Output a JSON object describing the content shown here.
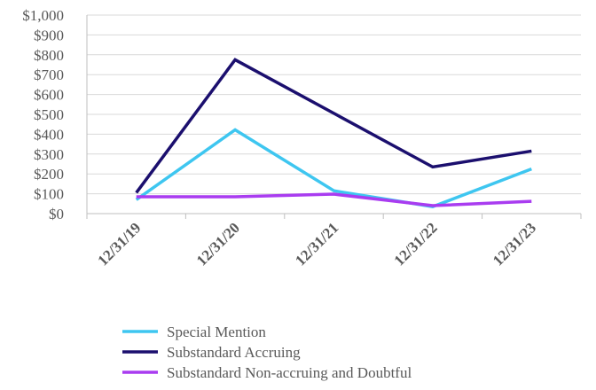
{
  "chart_data": {
    "type": "line",
    "categories": [
      "12/31/19",
      "12/31/20",
      "12/31/21",
      "12/31/22",
      "12/31/23"
    ],
    "series": [
      {
        "name": "Special Mention",
        "values": [
          70,
          422,
          115,
          35,
          225
        ],
        "color": "#3ec6f0"
      },
      {
        "name": "Substandard Accruing",
        "values": [
          105,
          775,
          505,
          235,
          315
        ],
        "color": "#1b0f6e"
      },
      {
        "name": "Substandard Non-accruing and Doubtful",
        "values": [
          85,
          85,
          98,
          40,
          62
        ],
        "color": "#a93cf0"
      }
    ],
    "y_ticks": [
      "$0",
      "$100",
      "$200",
      "$300",
      "$400",
      "$500",
      "$600",
      "$700",
      "$800",
      "$900",
      "$1,000"
    ],
    "ylim": [
      0,
      1000
    ],
    "grid": true,
    "legend_position": "bottom"
  }
}
